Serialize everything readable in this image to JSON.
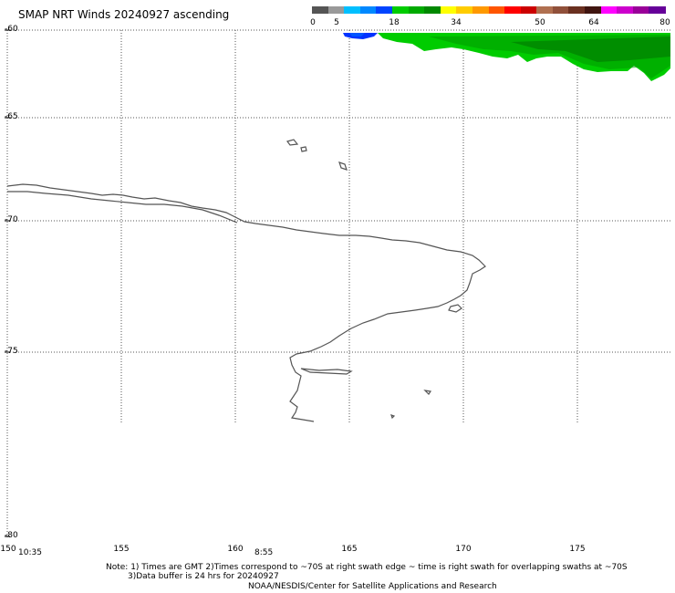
{
  "title": "SMAP NRT Winds 20240927 ascending",
  "colorbar": {
    "segments": [
      {
        "color": "#555555"
      },
      {
        "color": "#999999"
      },
      {
        "color": "#00bfff"
      },
      {
        "color": "#0088ff"
      },
      {
        "color": "#0044ff"
      },
      {
        "color": "#00cc00"
      },
      {
        "color": "#00aa00"
      },
      {
        "color": "#008800"
      },
      {
        "color": "#ffff00"
      },
      {
        "color": "#ffcc00"
      },
      {
        "color": "#ff9900"
      },
      {
        "color": "#ff5500"
      },
      {
        "color": "#ff0000"
      },
      {
        "color": "#cc0000"
      },
      {
        "color": "#b07050"
      },
      {
        "color": "#90503a"
      },
      {
        "color": "#6a3020"
      },
      {
        "color": "#401510"
      },
      {
        "color": "#ff00ff"
      },
      {
        "color": "#cc00cc"
      },
      {
        "color": "#990099"
      },
      {
        "color": "#660099"
      }
    ],
    "labels": [
      "0",
      "5",
      "18",
      "34",
      "50",
      "64",
      "80"
    ]
  },
  "map": {
    "lat_labels": [
      "-60",
      "-65",
      "-70",
      "-75",
      "-80"
    ],
    "lon_labels": [
      "150",
      "155",
      "160",
      "165",
      "170",
      "175"
    ],
    "time_labels": [
      "10:35",
      "8:55"
    ],
    "swath_color": "#00cc00",
    "swath_edge_color": "#0033ff",
    "coast_color": "#555555"
  },
  "note": {
    "line1": "Note: 1) Times are GMT 2)Times correspond to ~70S at right swath edge ~ time is right swath for overlapping swaths at ~70S",
    "line2": "3)Data buffer is 24 hrs for 20240927",
    "line3": "NOAA/NESDIS/Center for Satellite Applications and Research"
  }
}
